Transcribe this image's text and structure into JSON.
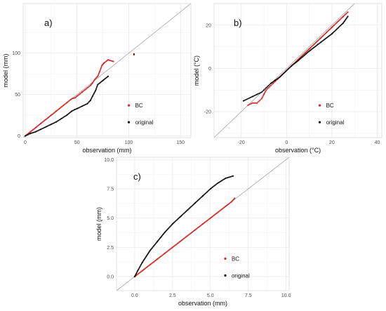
{
  "chart_data": [
    {
      "type": "scatter",
      "panel_label": "a)",
      "xlabel": "observation (mm)",
      "ylabel": "model (mm)",
      "xlim": [
        -2,
        160
      ],
      "ylim": [
        -2,
        160
      ],
      "x_ticks": [
        0,
        50,
        100,
        150
      ],
      "y_ticks": [
        0,
        50,
        100
      ],
      "identity_line": true,
      "grid": true,
      "legend_position": "bottom-right",
      "series": [
        {
          "name": "BC",
          "color": "#d62728",
          "points": [
            [
              0,
              0
            ],
            [
              5,
              5
            ],
            [
              10,
              10
            ],
            [
              15,
              15
            ],
            [
              20,
              20
            ],
            [
              25,
              25
            ],
            [
              30,
              30
            ],
            [
              35,
              35
            ],
            [
              40,
              40
            ],
            [
              45,
              45
            ],
            [
              48,
              46
            ],
            [
              50,
              48
            ],
            [
              52,
              50
            ],
            [
              55,
              53
            ],
            [
              58,
              56
            ],
            [
              60,
              58
            ],
            [
              63,
              61
            ],
            [
              65,
              64
            ],
            [
              67,
              68
            ],
            [
              70,
              72
            ],
            [
              72,
              78
            ],
            [
              74,
              85
            ],
            [
              76,
              88
            ],
            [
              80,
              92
            ],
            [
              85,
              90
            ],
            [
              105,
              98
            ]
          ]
        },
        {
          "name": "original",
          "color": "#111111",
          "points": [
            [
              0,
              0
            ],
            [
              5,
              3
            ],
            [
              10,
              5
            ],
            [
              15,
              8
            ],
            [
              20,
              11
            ],
            [
              25,
              14
            ],
            [
              30,
              17
            ],
            [
              35,
              21
            ],
            [
              40,
              25
            ],
            [
              45,
              30
            ],
            [
              48,
              32
            ],
            [
              50,
              33
            ],
            [
              55,
              36
            ],
            [
              60,
              39
            ],
            [
              63,
              43
            ],
            [
              65,
              48
            ],
            [
              68,
              55
            ],
            [
              70,
              62
            ],
            [
              75,
              67
            ],
            [
              80,
              72
            ],
            [
              105,
              99
            ]
          ]
        }
      ]
    },
    {
      "type": "scatter",
      "panel_label": "b)",
      "xlabel": "observation (°C)",
      "ylabel": "model (°C)",
      "xlim": [
        -32,
        42
      ],
      "ylim": [
        -32,
        30
      ],
      "x_ticks": [
        -20,
        0,
        20,
        40
      ],
      "y_ticks": [
        -20,
        0,
        20
      ],
      "identity_line": true,
      "grid": true,
      "legend_position": "bottom-right",
      "series": [
        {
          "name": "BC",
          "color": "#d62728",
          "points": [
            [
              -17,
              -17
            ],
            [
              -15,
              -16
            ],
            [
              -13,
              -16
            ],
            [
              -12,
              -15
            ],
            [
              -11,
              -14
            ],
            [
              -10,
              -12
            ],
            [
              -9,
              -10
            ],
            [
              -8,
              -9
            ],
            [
              -7,
              -8
            ],
            [
              -6,
              -7
            ],
            [
              -5,
              -6
            ],
            [
              -4,
              -5
            ],
            [
              -2,
              -3
            ],
            [
              0,
              -1
            ],
            [
              2,
              1
            ],
            [
              5,
              4
            ],
            [
              10,
              9
            ],
            [
              15,
              14
            ],
            [
              20,
              19
            ],
            [
              25,
              24
            ],
            [
              27,
              26
            ]
          ]
        },
        {
          "name": "original",
          "color": "#111111",
          "points": [
            [
              -19,
              -15
            ],
            [
              -17,
              -14
            ],
            [
              -15,
              -13
            ],
            [
              -13,
              -12
            ],
            [
              -11,
              -11
            ],
            [
              -10,
              -10
            ],
            [
              -9,
              -9
            ],
            [
              -8,
              -8
            ],
            [
              -7,
              -7
            ],
            [
              -5,
              -5.5
            ],
            [
              -3,
              -4
            ],
            [
              0,
              -1
            ],
            [
              2,
              1
            ],
            [
              5,
              3.5
            ],
            [
              10,
              8
            ],
            [
              15,
              12
            ],
            [
              20,
              16
            ],
            [
              25,
              21
            ],
            [
              27,
              24
            ]
          ]
        }
      ]
    },
    {
      "type": "scatter",
      "panel_label": "c)",
      "xlabel": "observation (mm)",
      "ylabel": "model (mm)",
      "xlim": [
        -1.2,
        10.2
      ],
      "ylim": [
        -1.2,
        10.2
      ],
      "x_ticks": [
        0,
        2.5,
        5,
        7.5,
        10
      ],
      "x_tick_labels": [
        "0.0",
        "2.5",
        "5.0",
        "7.5",
        "10.0"
      ],
      "y_ticks": [
        0,
        2.5,
        5,
        7.5,
        10
      ],
      "y_tick_labels": [
        "0.0",
        "2.5",
        "5.0",
        "7.5",
        "10.0"
      ],
      "identity_line": true,
      "grid": true,
      "legend_position": "bottom-right",
      "series": [
        {
          "name": "BC",
          "color": "#d62728",
          "points": [
            [
              0,
              0
            ],
            [
              0.5,
              0.5
            ],
            [
              1,
              1
            ],
            [
              1.5,
              1.5
            ],
            [
              2,
              2
            ],
            [
              2.5,
              2.5
            ],
            [
              3,
              3
            ],
            [
              3.5,
              3.5
            ],
            [
              4,
              4
            ],
            [
              4.5,
              4.5
            ],
            [
              5,
              5
            ],
            [
              5.5,
              5.5
            ],
            [
              6,
              6
            ],
            [
              6.4,
              6.4
            ],
            [
              6.6,
              6.7
            ]
          ]
        },
        {
          "name": "original",
          "color": "#111111",
          "points": [
            [
              0,
              0
            ],
            [
              0.2,
              0.5
            ],
            [
              0.5,
              1.2
            ],
            [
              1,
              2.2
            ],
            [
              1.5,
              3.0
            ],
            [
              2,
              3.8
            ],
            [
              2.5,
              4.5
            ],
            [
              3,
              5.1
            ],
            [
              3.5,
              5.7
            ],
            [
              4,
              6.3
            ],
            [
              4.5,
              6.9
            ],
            [
              5,
              7.5
            ],
            [
              5.5,
              8.0
            ],
            [
              6,
              8.4
            ],
            [
              6.5,
              8.6
            ]
          ]
        }
      ]
    }
  ]
}
